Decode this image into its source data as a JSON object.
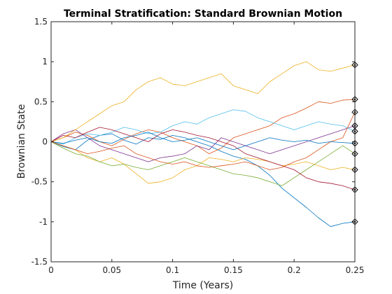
{
  "chart_data": {
    "type": "line",
    "title": "Terminal Stratification: Standard Brownian Motion",
    "xlabel": "Time (Years)",
    "ylabel": "Brownian State",
    "xlim": [
      0,
      0.25
    ],
    "ylim": [
      -1.5,
      1.5
    ],
    "xticks": [
      0,
      0.05,
      0.1,
      0.15,
      0.2,
      0.25
    ],
    "xtick_labels": [
      "0",
      "0.05",
      "0.1",
      "0.15",
      "0.2",
      "0.25"
    ],
    "yticks": [
      -1.5,
      -1,
      -0.5,
      0,
      0.5,
      1,
      1.5
    ],
    "ytick_labels": [
      "-1.5",
      "-1",
      "-0.5",
      "0",
      "0.5",
      "1",
      "1.5"
    ],
    "grid": false,
    "box": true,
    "marker_style": "diamond-with-dot",
    "x": [
      0,
      0.01,
      0.02,
      0.03,
      0.04,
      0.05,
      0.06,
      0.07,
      0.08,
      0.09,
      0.1,
      0.11,
      0.12,
      0.13,
      0.14,
      0.15,
      0.16,
      0.17,
      0.18,
      0.19,
      0.2,
      0.21,
      0.22,
      0.23,
      0.24,
      0.25
    ],
    "series": [
      {
        "color": "#0072BD",
        "values": [
          0,
          -0.06,
          -0.1,
          0.02,
          0.08,
          0.1,
          0.02,
          -0.03,
          0.05,
          0.03,
          0.08,
          0.05,
          0.0,
          -0.05,
          -0.12,
          -0.18,
          -0.22,
          -0.3,
          -0.42,
          -0.58,
          -0.7,
          -0.82,
          -0.95,
          -1.06,
          -1.02,
          -1.0
        ]
      },
      {
        "color": "#D95319",
        "values": [
          0,
          0.05,
          0.12,
          0.08,
          0.0,
          -0.05,
          0.03,
          0.1,
          0.15,
          0.12,
          0.05,
          0.0,
          -0.05,
          -0.15,
          -0.08,
          0.05,
          0.1,
          0.15,
          0.2,
          0.3,
          0.35,
          0.42,
          0.5,
          0.48,
          0.52,
          0.53
        ]
      },
      {
        "color": "#EDB120",
        "values": [
          0,
          -0.05,
          -0.1,
          -0.2,
          -0.25,
          -0.2,
          -0.28,
          -0.4,
          -0.52,
          -0.5,
          -0.45,
          -0.35,
          -0.3,
          -0.2,
          -0.22,
          -0.25,
          -0.2,
          -0.22,
          -0.25,
          -0.3,
          -0.28,
          -0.25,
          -0.3,
          -0.35,
          -0.32,
          -0.35
        ]
      },
      {
        "color": "#7E2F8E",
        "values": [
          0,
          0.1,
          0.15,
          0.05,
          -0.05,
          -0.1,
          -0.15,
          -0.2,
          -0.25,
          -0.2,
          -0.18,
          -0.15,
          -0.05,
          -0.1,
          0.05,
          0.0,
          -0.05,
          -0.1,
          -0.15,
          -0.1,
          -0.05,
          0.0,
          0.05,
          0.1,
          0.15,
          0.2
        ]
      },
      {
        "color": "#77AC30",
        "values": [
          0,
          -0.08,
          -0.15,
          -0.18,
          -0.25,
          -0.3,
          -0.28,
          -0.32,
          -0.35,
          -0.3,
          -0.25,
          -0.2,
          -0.25,
          -0.3,
          -0.35,
          -0.4,
          -0.42,
          -0.45,
          -0.5,
          -0.55,
          -0.45,
          -0.35,
          -0.25,
          -0.15,
          -0.05,
          -0.15
        ]
      },
      {
        "color": "#4DBEEE",
        "values": [
          0,
          -0.03,
          0.05,
          0.1,
          0.08,
          0.12,
          0.18,
          0.15,
          0.1,
          0.12,
          0.2,
          0.25,
          0.22,
          0.3,
          0.35,
          0.4,
          0.38,
          0.3,
          0.25,
          0.2,
          0.15,
          0.2,
          0.25,
          0.22,
          0.2,
          0.13
        ]
      },
      {
        "color": "#A2142F",
        "values": [
          0,
          0.08,
          0.05,
          0.12,
          0.18,
          0.15,
          0.1,
          0.05,
          0.0,
          0.1,
          0.15,
          0.12,
          0.08,
          0.05,
          0.0,
          -0.05,
          -0.15,
          -0.2,
          -0.25,
          -0.3,
          -0.35,
          -0.45,
          -0.5,
          -0.52,
          -0.55,
          -0.6
        ]
      },
      {
        "color": "#EDB120",
        "values": [
          0,
          0.05,
          0.15,
          0.25,
          0.35,
          0.45,
          0.5,
          0.65,
          0.75,
          0.8,
          0.72,
          0.7,
          0.75,
          0.8,
          0.85,
          0.7,
          0.65,
          0.6,
          0.75,
          0.85,
          0.95,
          1.0,
          0.9,
          0.88,
          0.92,
          0.96
        ]
      },
      {
        "color": "#D95319",
        "values": [
          0,
          -0.05,
          -0.1,
          -0.15,
          -0.12,
          -0.08,
          -0.05,
          -0.15,
          -0.2,
          -0.25,
          -0.28,
          -0.25,
          -0.3,
          -0.32,
          -0.3,
          -0.28,
          -0.25,
          -0.3,
          -0.35,
          -0.32,
          -0.25,
          -0.2,
          -0.1,
          0.0,
          0.05,
          0.37
        ]
      },
      {
        "color": "#0072BD",
        "values": [
          0,
          -0.02,
          0.02,
          0.05,
          0.0,
          -0.02,
          0.05,
          0.08,
          0.12,
          0.05,
          0.0,
          0.02,
          0.05,
          0.0,
          -0.05,
          -0.1,
          -0.05,
          0.0,
          0.05,
          0.02,
          0.0,
          0.02,
          -0.02,
          0.0,
          -0.01,
          -0.02
        ]
      }
    ]
  }
}
